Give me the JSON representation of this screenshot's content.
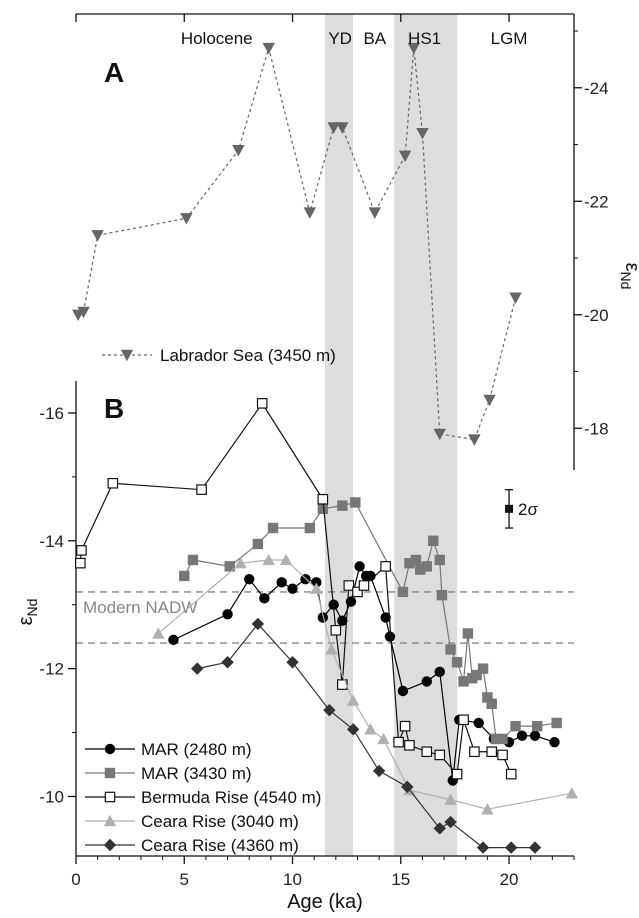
{
  "chart_data": [
    {
      "panel": "A",
      "type": "line",
      "xlabel": "Age (ka)",
      "ylabel": "εNd",
      "ylabel_base": "ε",
      "ylabel_sub": "Nd",
      "xlim": [
        0,
        23
      ],
      "ylim": [
        -17.3,
        -25.3
      ],
      "y_axis_position": "right",
      "y_axis_reversed": true,
      "yticks": [
        -18,
        -20,
        -22,
        -24
      ],
      "legend_position": "bottom-left",
      "series": [
        {
          "name": "Labrador Sea (3450 m)",
          "color": "#666666",
          "marker": "triangle-down",
          "line": "dashed",
          "x": [
            0.1,
            0.35,
            1.0,
            5.1,
            7.5,
            8.9,
            10.8,
            11.9,
            12.3,
            13.8,
            15.2,
            15.6,
            16.0,
            16.8,
            18.4,
            19.1,
            20.3
          ],
          "y": [
            -20.0,
            -20.05,
            -21.4,
            -21.7,
            -22.9,
            -24.7,
            -21.8,
            -23.3,
            -23.3,
            -21.8,
            -22.8,
            -24.7,
            -23.2,
            -17.9,
            -17.8,
            -18.5,
            -20.3
          ]
        }
      ]
    },
    {
      "panel": "B",
      "type": "line",
      "xlabel": "Age (ka)",
      "ylabel": "εNd",
      "ylabel_base": "ε",
      "ylabel_sub": "Nd",
      "xlim": [
        0,
        23
      ],
      "ylim": [
        -9.1,
        -16.5
      ],
      "y_axis_reversed": true,
      "xticks": [
        0,
        5,
        10,
        15,
        20
      ],
      "yticks": [
        -10,
        -12,
        -14,
        -16
      ],
      "legend_position": "bottom-left",
      "reference_lines": [
        {
          "y": -13.2,
          "label": "Modern NADW"
        },
        {
          "y": -12.4,
          "label": ""
        }
      ],
      "error_bar": {
        "label": "2σ",
        "x": 20.0,
        "y": -14.5,
        "err": 0.3
      },
      "series": [
        {
          "name": "MAR (2480 m)",
          "color": "#000000",
          "marker": "circle",
          "x": [
            4.5,
            7.0,
            8.0,
            8.7,
            9.5,
            10.0,
            10.6,
            11.1,
            11.4,
            11.9,
            12.3,
            12.7,
            13.1,
            13.4,
            13.6,
            14.3,
            14.5,
            15.1,
            16.2,
            16.8,
            17.4,
            17.7,
            18.6,
            19.3,
            20.0,
            20.6,
            21.2,
            22.1
          ],
          "y": [
            -12.45,
            -12.85,
            -13.4,
            -13.1,
            -13.35,
            -13.25,
            -13.4,
            -13.35,
            -12.8,
            -13.0,
            -12.75,
            -13.05,
            -13.6,
            -13.45,
            -13.45,
            -12.8,
            -12.5,
            -11.65,
            -11.8,
            -11.95,
            -10.25,
            -11.2,
            -11.15,
            -10.9,
            -10.85,
            -10.95,
            -10.95,
            -10.85
          ]
        },
        {
          "name": "MAR (3430 m)",
          "color": "#777777",
          "marker": "square",
          "x": [
            5.0,
            5.4,
            7.1,
            8.4,
            9.1,
            10.8,
            11.4,
            12.3,
            12.9,
            15.1,
            15.4,
            15.7,
            15.9,
            16.2,
            16.5,
            16.8,
            16.9,
            17.3,
            17.6,
            17.9,
            18.1,
            18.3,
            18.5,
            18.8,
            19.0,
            19.2,
            19.4,
            19.7,
            20.3,
            21.3,
            22.2
          ],
          "y": [
            -13.45,
            -13.7,
            -13.6,
            -13.95,
            -14.2,
            -14.2,
            -14.5,
            -14.55,
            -14.6,
            -13.2,
            -13.65,
            -13.7,
            -13.55,
            -13.6,
            -14.0,
            -13.7,
            -13.15,
            -12.3,
            -12.1,
            -11.8,
            -12.55,
            -11.85,
            -11.9,
            -12.0,
            -11.55,
            -11.45,
            -10.9,
            -10.9,
            -11.1,
            -11.1,
            -11.15
          ]
        },
        {
          "name": "Bermuda Rise (4540 m)",
          "color": "#111111",
          "marker": "open-square",
          "x": [
            0.2,
            0.25,
            1.7,
            5.8,
            8.6,
            11.4,
            12.0,
            12.3,
            12.6,
            13.0,
            13.3,
            14.3,
            14.9,
            15.2,
            15.4,
            16.2,
            16.8,
            17.6,
            17.9,
            18.4,
            19.2,
            19.7,
            20.1
          ],
          "y": [
            -13.65,
            -13.85,
            -14.9,
            -14.8,
            -16.15,
            -14.65,
            -12.6,
            -11.75,
            -13.3,
            -13.2,
            -13.3,
            -13.6,
            -10.85,
            -11.1,
            -10.8,
            -10.7,
            -10.65,
            -10.35,
            -11.2,
            -10.7,
            -10.7,
            -10.65,
            -10.35
          ]
        },
        {
          "name": "Ceara Rise (3040 m)",
          "color": "#b0b0b0",
          "marker": "triangle-up",
          "x": [
            3.8,
            7.6,
            8.9,
            9.7,
            11.1,
            11.8,
            12.8,
            13.6,
            14.2,
            15.4,
            17.3,
            19.0,
            22.9
          ],
          "y": [
            -12.55,
            -13.65,
            -13.7,
            -13.7,
            -13.25,
            -12.3,
            -11.5,
            -11.05,
            -10.9,
            -10.1,
            -9.95,
            -9.8,
            -10.05
          ]
        },
        {
          "name": "Ceara Rise (4360 m)",
          "color": "#333333",
          "marker": "diamond",
          "x": [
            5.6,
            7.0,
            8.4,
            10.0,
            11.7,
            12.8,
            14.0,
            15.3,
            16.8,
            17.3,
            18.8,
            20.1,
            21.2
          ],
          "y": [
            -12.0,
            -12.1,
            -12.7,
            -12.1,
            -11.35,
            -11.05,
            -10.4,
            -10.15,
            -9.5,
            -9.6,
            -9.2,
            -9.2,
            -9.2
          ]
        }
      ]
    }
  ],
  "shaded_periods": [
    {
      "label": "YD",
      "x_start": 11.5,
      "x_end": 12.8
    },
    {
      "label": "HS1",
      "x_start": 14.7,
      "x_end": 17.6
    }
  ],
  "period_labels": [
    {
      "label": "Holocene",
      "x": 6.5
    },
    {
      "label": "YD",
      "x": 12.2
    },
    {
      "label": "BA",
      "x": 13.8
    },
    {
      "label": "HS1",
      "x": 16.1
    },
    {
      "label": "LGM",
      "x": 20.0
    }
  ],
  "panel_labels": {
    "a": "A",
    "b": "B"
  },
  "shade_color": "#dddddd"
}
